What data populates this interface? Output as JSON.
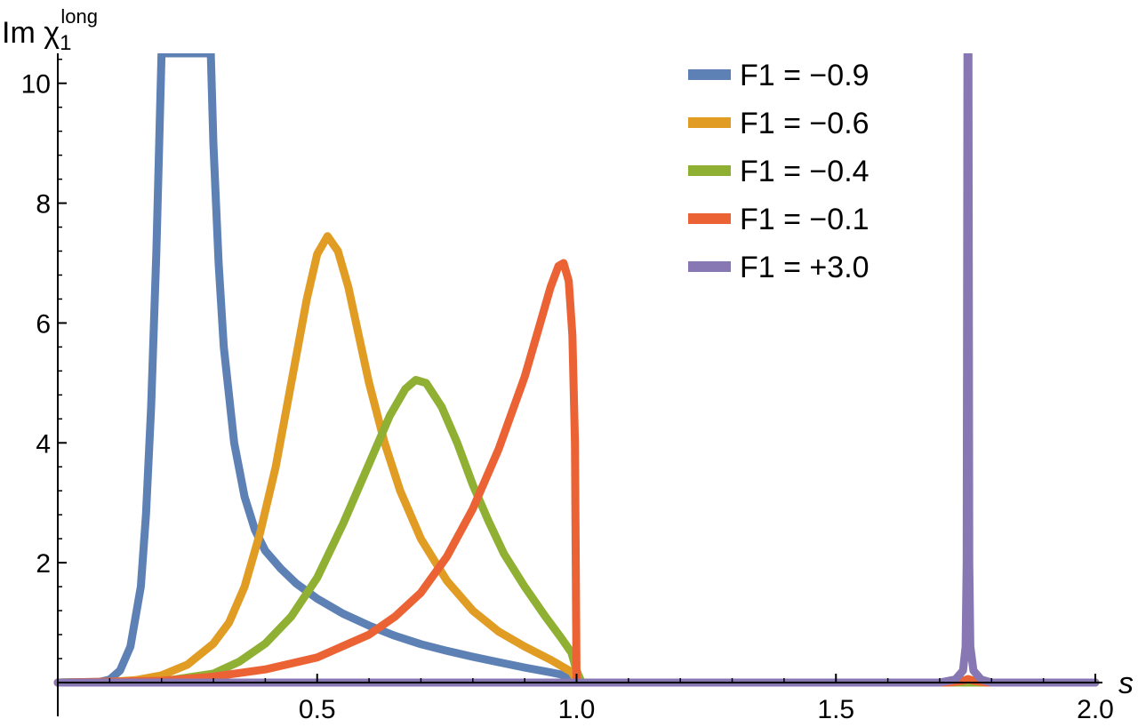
{
  "chart_data": {
    "type": "line",
    "ylabel": {
      "main": "Im χ",
      "subscript": "1",
      "superscript": "long"
    },
    "xlabel": "s",
    "xlim": [
      0,
      2.0
    ],
    "ylim": [
      0,
      10.5
    ],
    "x_ticks": [
      {
        "value": 0.5,
        "label": "0.5"
      },
      {
        "value": 1.0,
        "label": "1.0"
      },
      {
        "value": 1.5,
        "label": "1.5"
      },
      {
        "value": 2.0,
        "label": "2.0"
      }
    ],
    "y_ticks": [
      {
        "value": 2,
        "label": "2"
      },
      {
        "value": 4,
        "label": "4"
      },
      {
        "value": 6,
        "label": "6"
      },
      {
        "value": 8,
        "label": "8"
      },
      {
        "value": 10,
        "label": "10"
      }
    ],
    "grid": false,
    "legend_position": "top-right",
    "series": [
      {
        "name": "F1 = −0.9",
        "color": "#5e81b5",
        "points": [
          [
            0,
            0
          ],
          [
            0.08,
            0.01
          ],
          [
            0.1,
            0.05
          ],
          [
            0.12,
            0.2
          ],
          [
            0.14,
            0.6
          ],
          [
            0.16,
            1.6
          ],
          [
            0.17,
            2.8
          ],
          [
            0.18,
            4.6
          ],
          [
            0.19,
            7.2
          ],
          [
            0.2,
            10.5
          ],
          [
            0.295,
            10.5
          ],
          [
            0.3,
            9.0
          ],
          [
            0.31,
            7.0
          ],
          [
            0.32,
            5.6
          ],
          [
            0.34,
            4.0
          ],
          [
            0.36,
            3.1
          ],
          [
            0.38,
            2.55
          ],
          [
            0.4,
            2.2
          ],
          [
            0.43,
            1.9
          ],
          [
            0.46,
            1.65
          ],
          [
            0.5,
            1.4
          ],
          [
            0.55,
            1.15
          ],
          [
            0.6,
            0.95
          ],
          [
            0.65,
            0.78
          ],
          [
            0.7,
            0.64
          ],
          [
            0.75,
            0.53
          ],
          [
            0.8,
            0.43
          ],
          [
            0.85,
            0.34
          ],
          [
            0.9,
            0.25
          ],
          [
            0.95,
            0.17
          ],
          [
            0.99,
            0.1
          ],
          [
            1.0,
            0.05
          ],
          [
            1.01,
            0
          ],
          [
            2.0,
            0
          ]
        ]
      },
      {
        "name": "F1 = −0.6",
        "color": "#e19c24",
        "points": [
          [
            0,
            0
          ],
          [
            0.1,
            0.01
          ],
          [
            0.15,
            0.04
          ],
          [
            0.2,
            0.12
          ],
          [
            0.25,
            0.3
          ],
          [
            0.3,
            0.65
          ],
          [
            0.33,
            1.0
          ],
          [
            0.36,
            1.6
          ],
          [
            0.39,
            2.5
          ],
          [
            0.42,
            3.6
          ],
          [
            0.45,
            5.0
          ],
          [
            0.48,
            6.4
          ],
          [
            0.5,
            7.15
          ],
          [
            0.52,
            7.45
          ],
          [
            0.54,
            7.2
          ],
          [
            0.56,
            6.6
          ],
          [
            0.58,
            5.8
          ],
          [
            0.6,
            5.0
          ],
          [
            0.63,
            4.0
          ],
          [
            0.66,
            3.2
          ],
          [
            0.7,
            2.4
          ],
          [
            0.75,
            1.7
          ],
          [
            0.8,
            1.2
          ],
          [
            0.85,
            0.85
          ],
          [
            0.9,
            0.6
          ],
          [
            0.95,
            0.38
          ],
          [
            0.99,
            0.18
          ],
          [
            1.0,
            0.05
          ],
          [
            1.01,
            0
          ],
          [
            2.0,
            0
          ]
        ]
      },
      {
        "name": "F1 = −0.4",
        "color": "#8fb032",
        "points": [
          [
            0,
            0
          ],
          [
            0.2,
            0.02
          ],
          [
            0.3,
            0.15
          ],
          [
            0.35,
            0.35
          ],
          [
            0.4,
            0.65
          ],
          [
            0.45,
            1.1
          ],
          [
            0.5,
            1.75
          ],
          [
            0.55,
            2.65
          ],
          [
            0.6,
            3.65
          ],
          [
            0.64,
            4.45
          ],
          [
            0.67,
            4.9
          ],
          [
            0.69,
            5.05
          ],
          [
            0.71,
            5.0
          ],
          [
            0.74,
            4.6
          ],
          [
            0.77,
            4.0
          ],
          [
            0.8,
            3.3
          ],
          [
            0.83,
            2.7
          ],
          [
            0.86,
            2.15
          ],
          [
            0.9,
            1.6
          ],
          [
            0.94,
            1.1
          ],
          [
            0.97,
            0.75
          ],
          [
            0.99,
            0.5
          ],
          [
            1.0,
            0.2
          ],
          [
            1.01,
            0
          ],
          [
            2.0,
            0
          ]
        ]
      },
      {
        "name": "F1 = −0.1",
        "color": "#eb6235",
        "points": [
          [
            0,
            0
          ],
          [
            0.2,
            0.03
          ],
          [
            0.3,
            0.1
          ],
          [
            0.4,
            0.22
          ],
          [
            0.5,
            0.42
          ],
          [
            0.6,
            0.8
          ],
          [
            0.65,
            1.1
          ],
          [
            0.7,
            1.5
          ],
          [
            0.75,
            2.1
          ],
          [
            0.8,
            2.9
          ],
          [
            0.85,
            3.9
          ],
          [
            0.9,
            5.1
          ],
          [
            0.93,
            6.0
          ],
          [
            0.95,
            6.6
          ],
          [
            0.965,
            6.95
          ],
          [
            0.975,
            7.0
          ],
          [
            0.985,
            6.7
          ],
          [
            0.992,
            5.8
          ],
          [
            0.997,
            4.0
          ],
          [
            1.0,
            0
          ],
          [
            1.72,
            0
          ],
          [
            1.745,
            0.03
          ],
          [
            1.755,
            0.06
          ],
          [
            1.765,
            0.03
          ],
          [
            1.79,
            0
          ],
          [
            2.0,
            0
          ]
        ]
      },
      {
        "name": "F1 = +3.0",
        "color": "#8778b3",
        "points": [
          [
            0,
            0
          ],
          [
            1.7,
            0
          ],
          [
            1.73,
            0.05
          ],
          [
            1.745,
            0.2
          ],
          [
            1.75,
            0.6
          ],
          [
            1.752,
            2.0
          ],
          [
            1.7535,
            10.5
          ],
          [
            1.7555,
            10.5
          ],
          [
            1.757,
            2.0
          ],
          [
            1.759,
            0.6
          ],
          [
            1.765,
            0.2
          ],
          [
            1.78,
            0.05
          ],
          [
            1.8,
            0
          ],
          [
            2.0,
            0
          ]
        ]
      }
    ]
  }
}
